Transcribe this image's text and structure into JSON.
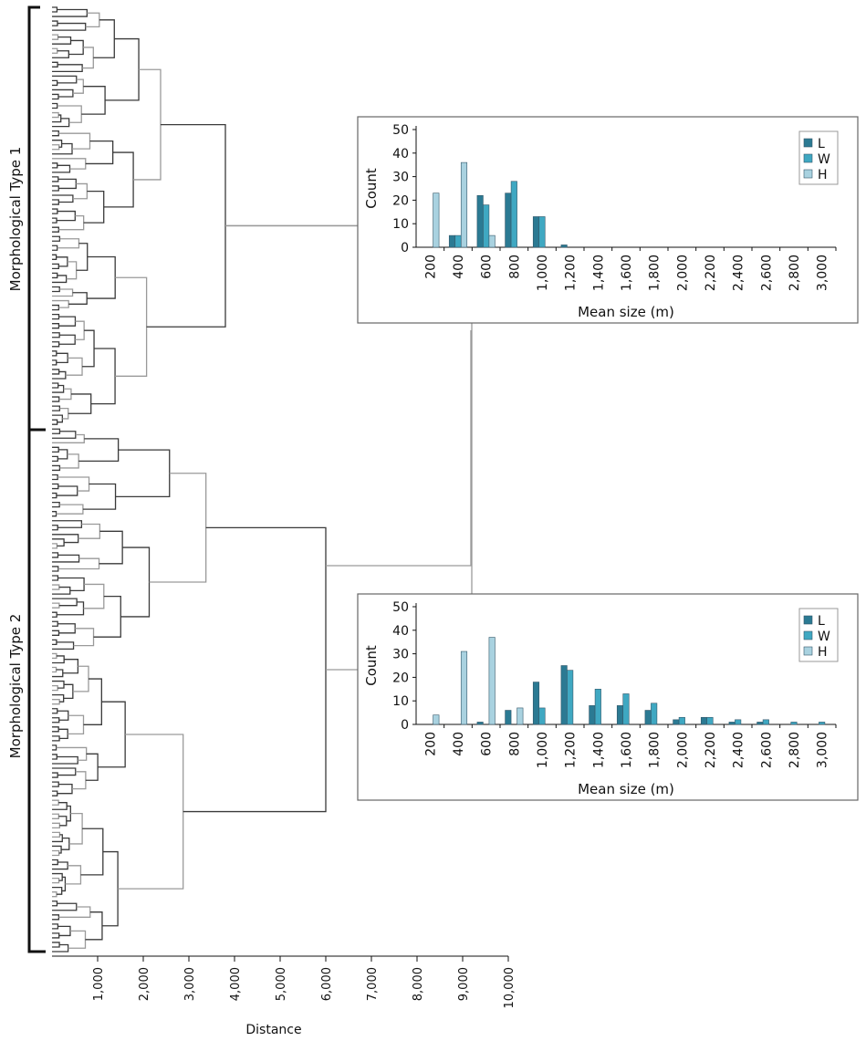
{
  "figure": {
    "group_labels": [
      "Morphological Type 1",
      "Morphological Type 2"
    ],
    "colors": {
      "L": "#2b7a93",
      "W": "#3fa8c2",
      "H": "#a9d2e0",
      "tree_dark": "#3a3a3a",
      "tree_light": "#9a9a9a"
    }
  },
  "chart_data": [
    {
      "type": "dendrogram",
      "xlabel": "Distance",
      "x_ticks": [
        "1,000",
        "2,000",
        "3,000",
        "4,000",
        "5,000",
        "6,000",
        "7,000",
        "8,000",
        "9,000",
        "10,000"
      ],
      "xlim": [
        0,
        10000
      ],
      "clusters": [
        {
          "name": "Morphological Type 1",
          "leaves": 92,
          "merge_distance": 3800
        },
        {
          "name": "Morphological Type 2",
          "leaves": 115,
          "merge_distance": 6000
        }
      ],
      "root_merge_distance": 9200
    },
    {
      "type": "bar",
      "title": "Morphological Type 1",
      "xlabel": "Mean size (m)",
      "ylabel": "Count",
      "ylim": [
        0,
        50
      ],
      "yticks": [
        "0",
        "10",
        "20",
        "30",
        "40",
        "50"
      ],
      "categories": [
        "200",
        "400",
        "600",
        "800",
        "1,000",
        "1,200",
        "1,400",
        "1,600",
        "1,800",
        "2,000",
        "2,200",
        "2,400",
        "2,600",
        "2,800",
        "3,000"
      ],
      "series": [
        {
          "name": "L",
          "values": [
            0,
            5,
            22,
            23,
            13,
            1,
            0,
            0,
            0,
            0,
            0,
            0,
            0,
            0,
            0
          ]
        },
        {
          "name": "W",
          "values": [
            0,
            5,
            18,
            28,
            13,
            0,
            0,
            0,
            0,
            0,
            0,
            0,
            0,
            0,
            0
          ]
        },
        {
          "name": "H",
          "values": [
            23,
            36,
            5,
            0,
            0,
            0,
            0,
            0,
            0,
            0,
            0,
            0,
            0,
            0,
            0
          ]
        }
      ],
      "legend": [
        "L",
        "W",
        "H"
      ],
      "legend_position": "top-right"
    },
    {
      "type": "bar",
      "title": "Morphological Type 2",
      "xlabel": "Mean size (m)",
      "ylabel": "Count",
      "ylim": [
        0,
        50
      ],
      "yticks": [
        "0",
        "10",
        "20",
        "30",
        "40",
        "50"
      ],
      "categories": [
        "200",
        "400",
        "600",
        "800",
        "1,000",
        "1,200",
        "1,400",
        "1,600",
        "1,800",
        "2,000",
        "2,200",
        "2,400",
        "2,600",
        "2,800",
        "3,000"
      ],
      "series": [
        {
          "name": "L",
          "values": [
            0,
            0,
            1,
            6,
            18,
            25,
            8,
            8,
            6,
            2,
            3,
            1,
            1,
            0,
            0
          ]
        },
        {
          "name": "W",
          "values": [
            0,
            0,
            0,
            0,
            7,
            23,
            15,
            13,
            9,
            3,
            3,
            2,
            2,
            1,
            1
          ]
        },
        {
          "name": "H",
          "values": [
            4,
            31,
            37,
            7,
            0,
            0,
            0,
            0,
            0,
            0,
            0,
            0,
            0,
            0,
            0
          ]
        }
      ],
      "legend": [
        "L",
        "W",
        "H"
      ],
      "legend_position": "top-right"
    }
  ]
}
